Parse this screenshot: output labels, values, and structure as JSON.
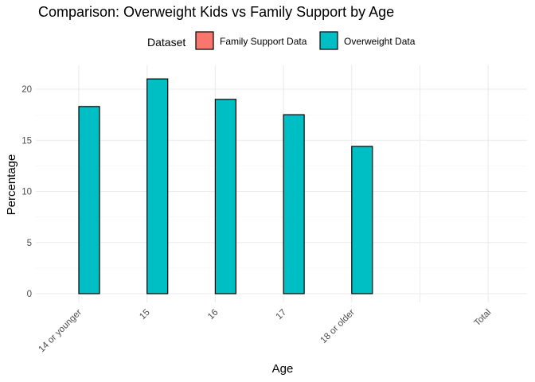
{
  "chart_data": {
    "type": "bar",
    "title": "Comparison: Overweight Kids vs Family Support by Age",
    "xlabel": "Age",
    "ylabel": "Percentage",
    "categories": [
      "14 or younger",
      "15",
      "16",
      "17",
      "18 or older",
      "",
      "Total"
    ],
    "series": [
      {
        "name": "Family Support Data",
        "color": "#F8766D",
        "values": [
          0,
          0,
          0,
          0,
          0,
          0,
          0
        ]
      },
      {
        "name": "Overweight Data",
        "color": "#00BFC4",
        "values": [
          18.3,
          21.0,
          19.0,
          17.5,
          14.4,
          0,
          0
        ]
      }
    ],
    "ylim": [
      0,
      22.2
    ],
    "yticks": [
      0,
      5,
      10,
      15,
      20
    ],
    "grid": true,
    "legend": {
      "title": "Dataset",
      "position": "top"
    }
  }
}
